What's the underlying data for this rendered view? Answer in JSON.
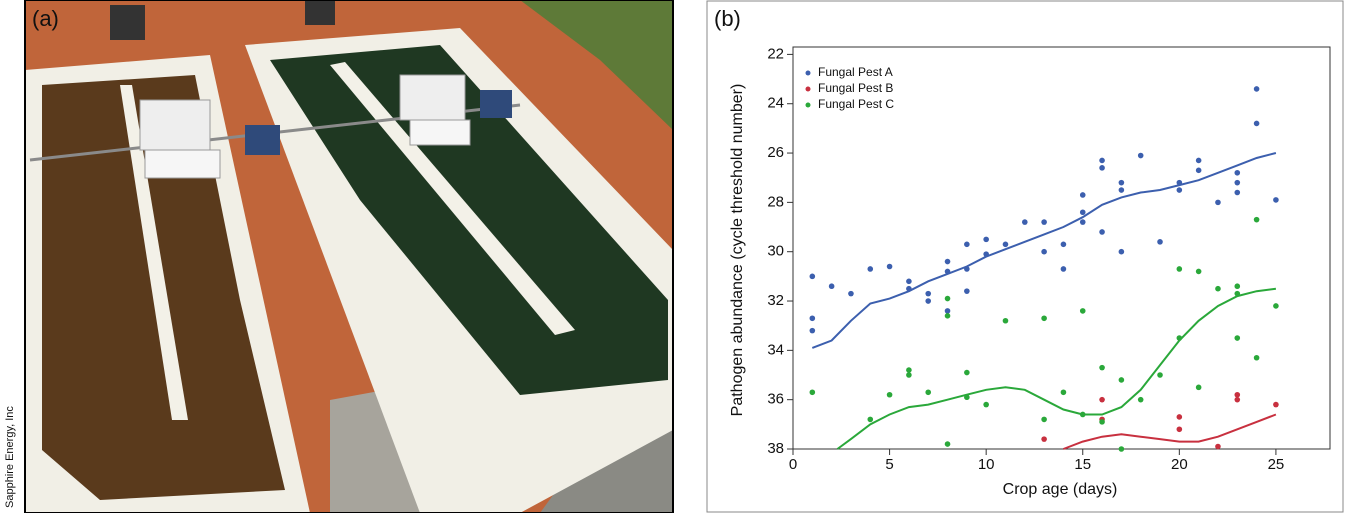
{
  "photo": {
    "label": "(a)",
    "credit": "Sapphire Energy, Inc"
  },
  "chart_data": {
    "type": "scatter",
    "panel_label": "(b)",
    "x_label": "Crop age (days)",
    "y_label": "Pathogen abundance (cycle threshold number)",
    "xlim": [
      0,
      27.8
    ],
    "ylim": [
      38,
      21.7
    ],
    "xticks": [
      0,
      5,
      10,
      15,
      20,
      25
    ],
    "yticks": [
      22,
      24,
      26,
      28,
      30,
      32,
      34,
      36,
      38
    ],
    "legend": "top-left",
    "series": [
      {
        "name": "Fungal Pest A",
        "color": "#3c5fae",
        "x": [
          1,
          1,
          1,
          2,
          3,
          4,
          5,
          6,
          6,
          7,
          7,
          8,
          8,
          8,
          9,
          9,
          9,
          10,
          10,
          11,
          12,
          13,
          13,
          14,
          14,
          15,
          15,
          15,
          16,
          16,
          16,
          17,
          17,
          17,
          18,
          19,
          20,
          20,
          21,
          21,
          22,
          23,
          23,
          23,
          24,
          24,
          25
        ],
        "values": [
          31.0,
          32.7,
          33.2,
          31.4,
          31.7,
          30.7,
          30.6,
          31.2,
          31.5,
          31.7,
          32.0,
          30.4,
          30.8,
          32.4,
          29.7,
          30.7,
          31.6,
          29.5,
          30.1,
          29.7,
          28.8,
          28.8,
          30.0,
          29.7,
          30.7,
          27.7,
          28.4,
          28.8,
          26.3,
          26.6,
          29.2,
          27.2,
          27.5,
          30.0,
          26.1,
          29.6,
          27.2,
          27.5,
          26.3,
          26.7,
          28.0,
          26.8,
          27.2,
          27.6,
          23.4,
          24.8,
          27.9
        ],
        "trend_x": [
          1,
          2,
          3,
          4,
          5,
          6,
          7,
          8,
          9,
          10,
          11,
          12,
          13,
          14,
          15,
          16,
          17,
          18,
          19,
          20,
          21,
          22,
          23,
          24,
          25
        ],
        "trend_values": [
          33.9,
          33.6,
          32.8,
          32.1,
          31.9,
          31.6,
          31.2,
          30.9,
          30.6,
          30.2,
          29.9,
          29.6,
          29.3,
          29.0,
          28.6,
          28.1,
          27.8,
          27.6,
          27.5,
          27.3,
          27.1,
          26.8,
          26.5,
          26.2,
          26.0
        ]
      },
      {
        "name": "Fungal Pest B",
        "color": "#c8303f",
        "x": [
          13,
          16,
          16,
          20,
          20,
          22,
          23,
          23,
          25
        ],
        "values": [
          37.6,
          36.0,
          36.8,
          36.7,
          37.2,
          37.9,
          35.8,
          36.0,
          36.2
        ],
        "trend_x": [
          14,
          15,
          16,
          17,
          18,
          19,
          20,
          21,
          22,
          23,
          24,
          25
        ],
        "trend_values": [
          38.0,
          37.7,
          37.5,
          37.4,
          37.5,
          37.6,
          37.7,
          37.7,
          37.5,
          37.2,
          36.9,
          36.6
        ]
      },
      {
        "name": "Fungal Pest C",
        "color": "#2aa83a",
        "x": [
          1,
          4,
          5,
          6,
          6,
          7,
          8,
          8,
          8,
          9,
          9,
          10,
          11,
          13,
          13,
          14,
          15,
          15,
          16,
          16,
          17,
          17,
          18,
          19,
          20,
          20,
          21,
          21,
          22,
          23,
          23,
          23,
          24,
          24,
          25
        ],
        "values": [
          35.7,
          36.8,
          35.8,
          34.8,
          35.0,
          35.7,
          31.9,
          32.6,
          37.8,
          34.9,
          35.9,
          36.2,
          32.8,
          32.7,
          36.8,
          35.7,
          32.4,
          36.6,
          34.7,
          36.9,
          35.2,
          38.0,
          36.0,
          35.0,
          30.7,
          33.5,
          30.8,
          35.5,
          31.5,
          31.4,
          31.7,
          33.5,
          28.7,
          34.3,
          32.2
        ],
        "trend_x": [
          2.3,
          3,
          4,
          5,
          6,
          7,
          8,
          9,
          10,
          11,
          12,
          13,
          14,
          15,
          16,
          17,
          18,
          19,
          20,
          21,
          22,
          23,
          24,
          25
        ],
        "trend_values": [
          38.0,
          37.6,
          37.0,
          36.6,
          36.3,
          36.2,
          36.0,
          35.8,
          35.6,
          35.5,
          35.6,
          36.0,
          36.4,
          36.6,
          36.6,
          36.3,
          35.6,
          34.6,
          33.6,
          32.8,
          32.2,
          31.8,
          31.6,
          31.5
        ]
      }
    ]
  }
}
